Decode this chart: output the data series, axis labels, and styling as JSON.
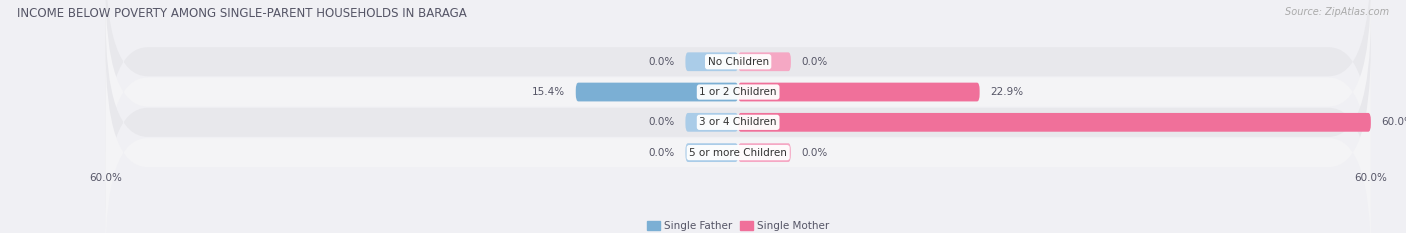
{
  "title": "INCOME BELOW POVERTY AMONG SINGLE-PARENT HOUSEHOLDS IN BARAGA",
  "source": "Source: ZipAtlas.com",
  "categories": [
    "No Children",
    "1 or 2 Children",
    "3 or 4 Children",
    "5 or more Children"
  ],
  "single_father": [
    0.0,
    15.4,
    0.0,
    0.0
  ],
  "single_mother": [
    0.0,
    22.9,
    60.0,
    0.0
  ],
  "father_color": "#7bafd4",
  "father_color_stub": "#aacce8",
  "mother_color": "#f0709a",
  "mother_color_stub": "#f5a8c4",
  "axis_max": 60.0,
  "stub_val": 5.0,
  "bar_height": 0.62,
  "row_colors": [
    "#e8e8ec",
    "#f4f4f6",
    "#e8e8ec",
    "#f4f4f6"
  ],
  "legend_father": "Single Father",
  "legend_mother": "Single Mother",
  "fig_bg": "#f0f0f4"
}
